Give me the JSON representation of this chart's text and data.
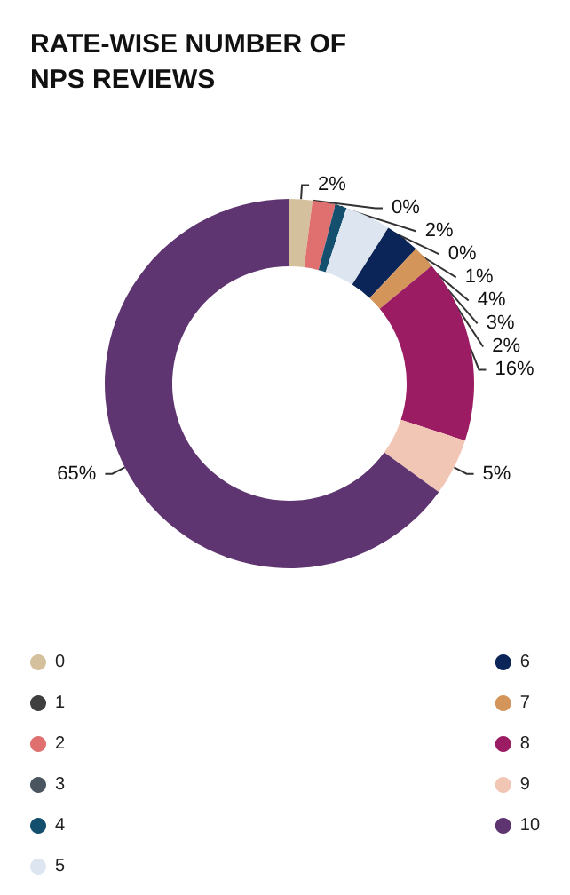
{
  "chart_data": {
    "type": "donut",
    "title": "RATE-WISE NUMBER OF NPS REVIEWS",
    "categories": [
      "0",
      "1",
      "2",
      "3",
      "4",
      "5",
      "6",
      "7",
      "8",
      "9",
      "10"
    ],
    "values": [
      2,
      0,
      2,
      0,
      1,
      4,
      3,
      2,
      16,
      5,
      65
    ],
    "value_labels": [
      "2%",
      "0%",
      "2%",
      "0%",
      "1%",
      "4%",
      "3%",
      "2%",
      "16%",
      "5%",
      "65%"
    ],
    "colors": [
      "#d4c09c",
      "#3f3f3f",
      "#e07070",
      "#4a5560",
      "#14506e",
      "#dde6f0",
      "#0c2558",
      "#d4955a",
      "#9c1c64",
      "#f2c6b4",
      "#5e3570"
    ],
    "legend": "bottom"
  }
}
